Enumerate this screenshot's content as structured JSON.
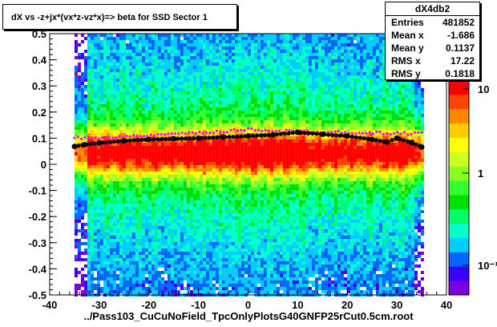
{
  "chart_data": {
    "type": "heatmap",
    "title": "dX vs  -z+jx*(vx*z-vz*x)=> beta  for SSD Sector 1",
    "xlabel": "../Pass103_CuCuNoField_TpcOnlyPlotsG40GNFP25rCut0.5cm.root",
    "ylabel": "",
    "xlim": [
      -40,
      40
    ],
    "ylim": [
      -0.5,
      0.5
    ],
    "x_ticks": [
      "-40",
      "-30",
      "-20",
      "-10",
      "0",
      "10",
      "20",
      "30",
      "40"
    ],
    "y_ticks": [
      "-0.5",
      "-0.4",
      "-0.3",
      "-0.2",
      "-0.1",
      "0",
      "0.1",
      "0.2",
      "0.3",
      "0.4",
      "0.5"
    ],
    "z_scale": "log",
    "z_ticks": [
      "10",
      "1",
      "10⁻¹"
    ],
    "filled_x_range": [
      -35,
      35
    ],
    "profile_mean_points": [
      {
        "x": -35,
        "y": 0.068
      },
      {
        "x": -33,
        "y": 0.075
      },
      {
        "x": -30,
        "y": 0.082
      },
      {
        "x": -25,
        "y": 0.09
      },
      {
        "x": -20,
        "y": 0.095
      },
      {
        "x": -15,
        "y": 0.098
      },
      {
        "x": -10,
        "y": 0.1
      },
      {
        "x": -5,
        "y": 0.104
      },
      {
        "x": 0,
        "y": 0.108
      },
      {
        "x": 5,
        "y": 0.113
      },
      {
        "x": 10,
        "y": 0.122
      },
      {
        "x": 15,
        "y": 0.115
      },
      {
        "x": 20,
        "y": 0.108
      },
      {
        "x": 25,
        "y": 0.095
      },
      {
        "x": 28,
        "y": 0.085
      },
      {
        "x": 30,
        "y": 0.1
      },
      {
        "x": 33,
        "y": 0.083
      },
      {
        "x": 35,
        "y": 0.066
      }
    ],
    "profile_peak_points": [
      {
        "x": -35,
        "y": 0.1
      },
      {
        "x": -25,
        "y": 0.105
      },
      {
        "x": -15,
        "y": 0.115
      },
      {
        "x": -5,
        "y": 0.125
      },
      {
        "x": 0,
        "y": 0.135
      },
      {
        "x": 5,
        "y": 0.128
      },
      {
        "x": 15,
        "y": 0.125
      },
      {
        "x": 25,
        "y": 0.12
      },
      {
        "x": 35,
        "y": 0.118
      }
    ]
  },
  "stats_box": {
    "name": "dX4db2",
    "rows": [
      {
        "label": "Entries",
        "value": "481852"
      },
      {
        "label": "Mean x",
        "value": "-1.686"
      },
      {
        "label": "Mean y",
        "value": "0.1137"
      },
      {
        "label": "RMS x",
        "value": "17.22"
      },
      {
        "label": "RMS y",
        "value": "0.1818"
      }
    ]
  },
  "colors": {
    "palette": [
      "#7a00e0",
      "#3a00ff",
      "#0066ff",
      "#00ccff",
      "#00ffcc",
      "#00ff66",
      "#00e000",
      "#33ff33",
      "#88ff22",
      "#ccff22",
      "#ffff00",
      "#ffcc00",
      "#ff8800",
      "#ff4400",
      "#ff0000"
    ],
    "profile_mean": "#000000",
    "profile_peak": "#ff00ff"
  }
}
